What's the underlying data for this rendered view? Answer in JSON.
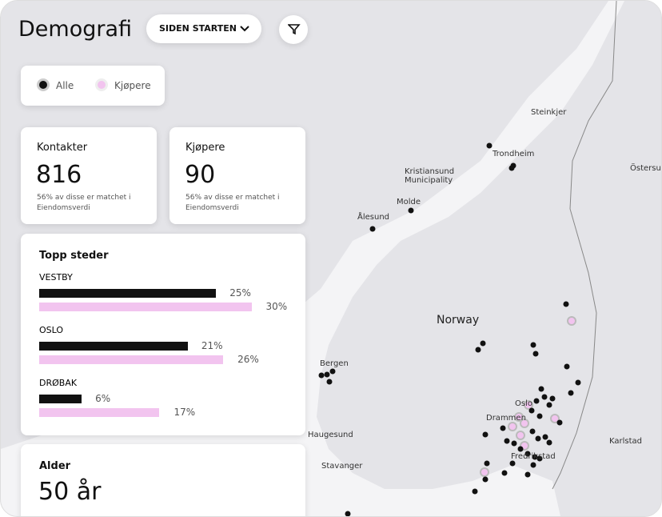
{
  "header": {
    "title": "Demografi",
    "period_select": "SIDEN STARTEN"
  },
  "legend": {
    "items": [
      "Alle",
      "Kjøpere"
    ]
  },
  "stats": [
    {
      "label": "Kontakter",
      "value": 816,
      "note": "56% av disse er matchet i Eiendomsverdi"
    },
    {
      "label": "Kjøpere",
      "value": 90,
      "note": "56% av disse er matchet i Eiendomsverdi"
    }
  ],
  "top_places": {
    "title": "Topp steder",
    "items": [
      {
        "name": "VESTBY",
        "values": [
          25,
          30
        ],
        "value_labels": [
          "25%",
          "30%"
        ]
      },
      {
        "name": "OSLO",
        "values": [
          21,
          26
        ],
        "value_labels": [
          "21%",
          "26%"
        ]
      },
      {
        "name": "DRØBAK",
        "values": [
          6,
          17
        ],
        "value_labels": [
          "6%",
          "17%"
        ]
      }
    ]
  },
  "age": {
    "title": "Alder",
    "value": "50 år"
  },
  "map": {
    "labels": [
      "Steinkjer",
      "Trondheim",
      "Kristiansund Municipality",
      "Molde",
      "Ålesund",
      "Östersund",
      "Norway",
      "Bergen",
      "Haugesund",
      "Stavanger",
      "Oslo",
      "Drammen",
      "Fredrikstad",
      "Karlstad"
    ]
  }
}
